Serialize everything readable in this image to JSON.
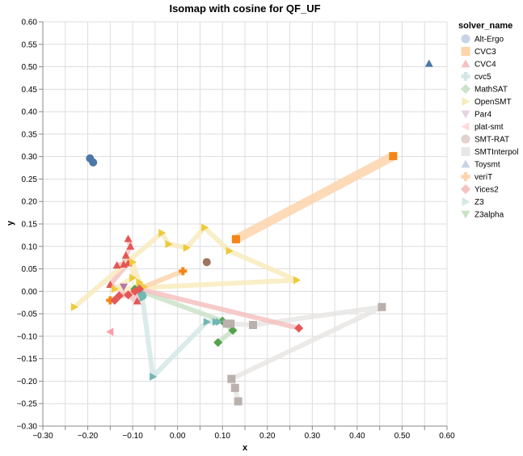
{
  "chart_data": {
    "type": "scatter",
    "title": "Isomap with cosine for QF_UF",
    "xlabel": "x",
    "ylabel": "y",
    "xlim": [
      -0.3,
      0.6
    ],
    "ylim": [
      -0.3,
      0.6
    ],
    "grid": true,
    "x_ticks": [
      "−0.30",
      "−0.20",
      "−0.10",
      "0.00",
      "0.10",
      "0.20",
      "0.30",
      "0.40",
      "0.50",
      "0.60"
    ],
    "x_tick_values": [
      -0.3,
      -0.2,
      -0.1,
      0.0,
      0.1,
      0.2,
      0.3,
      0.4,
      0.5,
      0.6
    ],
    "y_ticks": [
      "0.60",
      "0.55",
      "0.50",
      "0.45",
      "0.40",
      "0.35",
      "0.30",
      "0.25",
      "0.20",
      "0.15",
      "0.10",
      "0.05",
      "0.00",
      "−0.05",
      "−0.10",
      "−0.15",
      "−0.20",
      "−0.25",
      "−0.30"
    ],
    "y_tick_values": [
      0.6,
      0.55,
      0.5,
      0.45,
      0.4,
      0.35,
      0.3,
      0.25,
      0.2,
      0.15,
      0.1,
      0.05,
      0.0,
      -0.05,
      -0.1,
      -0.15,
      -0.2,
      -0.25,
      -0.3
    ],
    "legend": {
      "title": "solver_name",
      "placement": "right"
    },
    "series": [
      {
        "name": "Alt-Ergo",
        "shape": "circle",
        "color": "#4c78a8",
        "light": "#c6d4e6",
        "points": [
          [
            -0.195,
            0.296
          ],
          [
            -0.188,
            0.287
          ]
        ]
      },
      {
        "name": "CVC3",
        "shape": "square",
        "color": "#f58518",
        "light": "#fdd4ac",
        "points": [
          [
            0.13,
            0.116
          ],
          [
            0.48,
            0.301
          ]
        ]
      },
      {
        "name": "CVC4",
        "shape": "triangle-up",
        "color": "#e45756",
        "light": "#f5c2c1",
        "points": [
          [
            -0.11,
            0.117
          ],
          [
            -0.105,
            0.1
          ],
          [
            -0.115,
            0.08
          ],
          [
            -0.12,
            0.06
          ],
          [
            -0.135,
            0.058
          ],
          [
            -0.11,
            0.063
          ],
          [
            -0.15,
            0.015
          ],
          [
            -0.09,
            -0.022
          ],
          [
            -0.095,
            0.005
          ]
        ]
      },
      {
        "name": "cvc5",
        "shape": "cross",
        "color": "#72b7b2",
        "light": "#d3e8e6",
        "points": [
          [
            -0.085,
            0.005
          ],
          [
            -0.08,
            -0.005
          ],
          [
            -0.078,
            -0.01
          ]
        ]
      },
      {
        "name": "MathSAT",
        "shape": "diamond",
        "color": "#54a24b",
        "light": "#cbe3c8",
        "points": [
          [
            -0.095,
            0.005
          ],
          [
            0.1,
            -0.066
          ],
          [
            0.123,
            -0.087
          ],
          [
            0.09,
            -0.114
          ]
        ]
      },
      {
        "name": "OpenSMT",
        "shape": "triangle-right",
        "color": "#eeca3b",
        "light": "#f8ebbd",
        "points": [
          [
            -0.23,
            -0.035
          ],
          [
            -0.035,
            0.13
          ],
          [
            -0.02,
            0.105
          ],
          [
            0.02,
            0.097
          ],
          [
            0.06,
            0.142
          ],
          [
            0.115,
            0.09
          ],
          [
            0.265,
            0.025
          ],
          [
            -0.14,
            0.005
          ],
          [
            -0.1,
            0.03
          ],
          [
            -0.1,
            0.065
          ],
          [
            -0.085,
            0.02
          ],
          [
            -0.075,
            0.01
          ]
        ]
      },
      {
        "name": "Par4",
        "shape": "triangle-down",
        "color": "#b279a2",
        "light": "#e6d3e1",
        "points": [
          [
            -0.12,
            0.01
          ]
        ]
      },
      {
        "name": "plat-smt",
        "shape": "triangle-left",
        "color": "#ff9da6",
        "light": "#ffdbdf",
        "points": [
          [
            -0.15,
            -0.09
          ]
        ]
      },
      {
        "name": "SMT-RAT",
        "shape": "circle",
        "color": "#9d755d",
        "light": "#e0d3cb",
        "points": [
          [
            0.065,
            0.065
          ]
        ]
      },
      {
        "name": "SMTInterpol",
        "shape": "square",
        "color": "#bab0ac",
        "light": "#e9e6e5",
        "points": [
          [
            0.11,
            -0.072
          ],
          [
            0.118,
            -0.072
          ],
          [
            0.168,
            -0.075
          ],
          [
            0.455,
            -0.035
          ],
          [
            0.12,
            -0.195
          ],
          [
            0.128,
            -0.215
          ],
          [
            0.135,
            -0.245
          ]
        ]
      },
      {
        "name": "Toysmt",
        "shape": "triangle-up",
        "color": "#4c78a8",
        "light": "#c6d4e6",
        "points": [
          [
            0.56,
            0.507
          ]
        ]
      },
      {
        "name": "veriT",
        "shape": "cross",
        "color": "#f58518",
        "light": "#fdd4ac",
        "points": [
          [
            -0.15,
            -0.02
          ],
          [
            0.012,
            0.045
          ]
        ]
      },
      {
        "name": "Yices2",
        "shape": "diamond",
        "color": "#e45756",
        "light": "#f5c2c1",
        "points": [
          [
            -0.14,
            -0.02
          ],
          [
            -0.13,
            -0.01
          ],
          [
            -0.11,
            -0.008
          ],
          [
            -0.095,
            0.0
          ],
          [
            -0.085,
            0.005
          ],
          [
            0.27,
            -0.082
          ]
        ]
      },
      {
        "name": "Z3",
        "shape": "triangle-right",
        "color": "#72b7b2",
        "light": "#d3e8e6",
        "points": [
          [
            -0.078,
            -0.015
          ],
          [
            -0.055,
            -0.19
          ],
          [
            0.065,
            -0.068
          ],
          [
            0.085,
            -0.068
          ],
          [
            0.092,
            -0.068
          ]
        ]
      },
      {
        "name": "Z3alpha",
        "shape": "triangle-down",
        "color": "#54a24b",
        "light": "#cbe3c8",
        "points": []
      }
    ]
  }
}
